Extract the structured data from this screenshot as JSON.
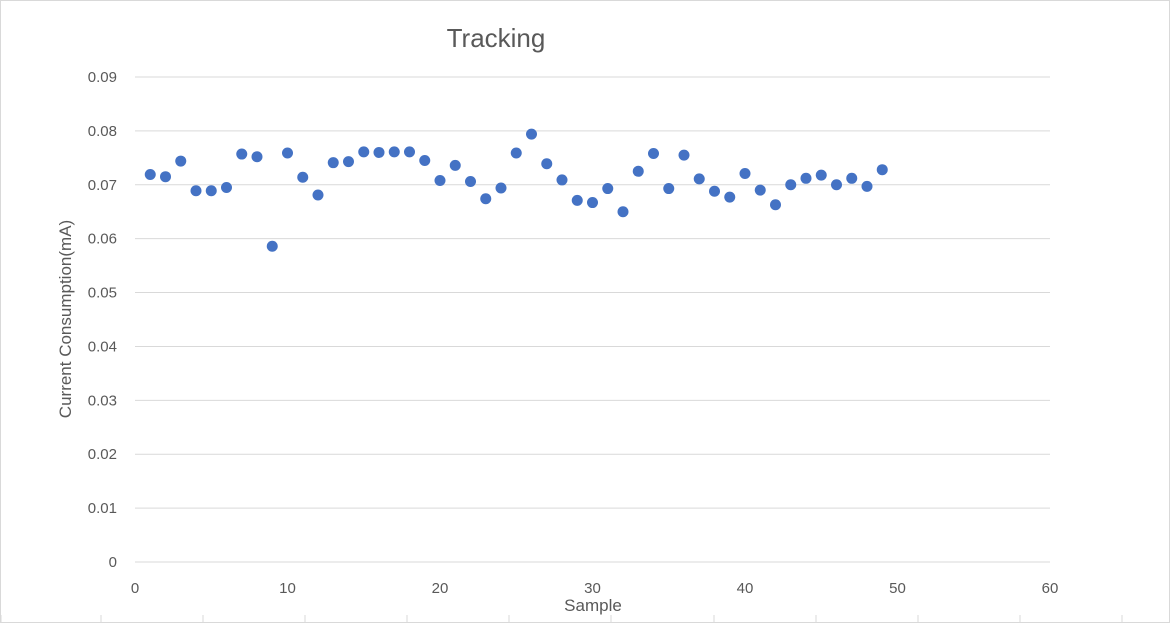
{
  "chart_data": {
    "type": "scatter",
    "title": "Tracking",
    "xlabel": "Sample",
    "ylabel": "Current Consumption(mA)",
    "xlim": [
      0,
      60
    ],
    "ylim": [
      0,
      0.09
    ],
    "x_ticks": [
      "0",
      "10",
      "20",
      "30",
      "40",
      "50",
      "60"
    ],
    "y_ticks": [
      "0",
      "0.01",
      "0.02",
      "0.03",
      "0.04",
      "0.05",
      "0.06",
      "0.07",
      "0.08",
      "0.09"
    ],
    "grid": "horizontal",
    "legend": "none",
    "marker_color": "#4472C4",
    "x": [
      1,
      2,
      3,
      4,
      5,
      6,
      7,
      8,
      9,
      10,
      11,
      12,
      13,
      14,
      15,
      16,
      17,
      18,
      19,
      20,
      21,
      22,
      23,
      24,
      25,
      26,
      27,
      28,
      29,
      30,
      31,
      32,
      33,
      34,
      35,
      36,
      37,
      38,
      39,
      40,
      41,
      42,
      43,
      44,
      45,
      46,
      47,
      48,
      49
    ],
    "y": [
      0.0719,
      0.0715,
      0.0744,
      0.0689,
      0.0689,
      0.0695,
      0.0757,
      0.0752,
      0.0586,
      0.0759,
      0.0714,
      0.0681,
      0.0741,
      0.0743,
      0.0761,
      0.076,
      0.0761,
      0.0761,
      0.0745,
      0.0708,
      0.0736,
      0.0706,
      0.0674,
      0.0694,
      0.0759,
      0.0794,
      0.0739,
      0.0709,
      0.0671,
      0.0667,
      0.0693,
      0.065,
      0.0725,
      0.0758,
      0.0693,
      0.0755,
      0.0711,
      0.0688,
      0.0677,
      0.0721,
      0.069,
      0.0663,
      0.07,
      0.0712,
      0.0718,
      0.07,
      0.0712,
      0.0697,
      0.0728
    ]
  }
}
